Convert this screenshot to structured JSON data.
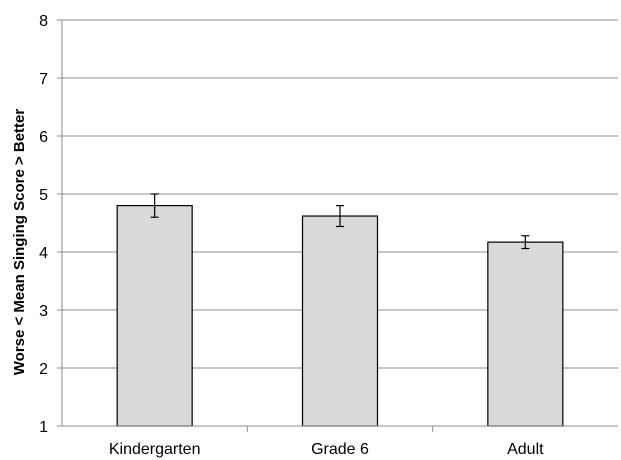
{
  "chart_data": {
    "type": "bar",
    "title": "",
    "xlabel": "",
    "ylabel": "Worse < Mean Singing Score > Better",
    "categories": [
      "Kindergarten",
      "Grade 6",
      "Adult"
    ],
    "values": [
      4.8,
      4.62,
      4.17
    ],
    "error": [
      0.2,
      0.18,
      0.11
    ],
    "ylim": [
      1,
      8
    ],
    "yticks": [
      1,
      2,
      3,
      4,
      5,
      6,
      7,
      8
    ],
    "grid": true,
    "legend": "none",
    "colors": {
      "bar_fill": "#d9d9d9",
      "bar_stroke": "#000000",
      "grid": "#8c8c8c",
      "axis": "#8c8c8c",
      "error_bar": "#000000"
    }
  }
}
